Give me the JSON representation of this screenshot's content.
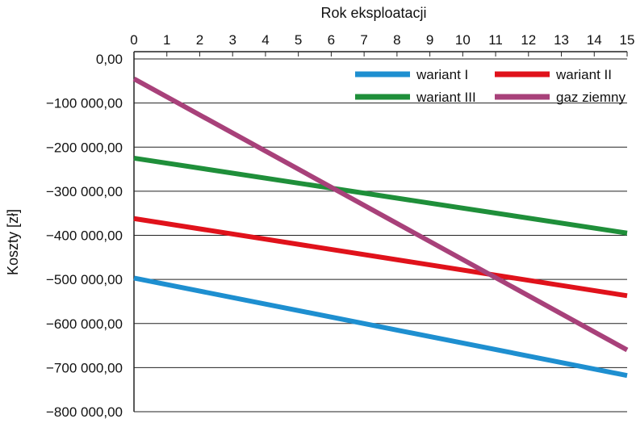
{
  "chart_data": {
    "type": "line",
    "xlabel": "Rok eksploatacji",
    "ylabel": "Koszty [zł]",
    "x_axis_position": "top",
    "xlim": [
      0,
      15
    ],
    "ylim": [
      -800000,
      0
    ],
    "grid": "horizontal",
    "legend_position": "top-right",
    "x_ticks": [
      "0",
      "1",
      "2",
      "3",
      "4",
      "5",
      "6",
      "7",
      "8",
      "9",
      "10",
      "11",
      "12",
      "13",
      "14",
      "15"
    ],
    "y_ticks": [
      {
        "value": 0,
        "label": "0,00"
      },
      {
        "value": -100000,
        "label": "−100 000,00"
      },
      {
        "value": -200000,
        "label": "−200 000,00"
      },
      {
        "value": -300000,
        "label": "−300 000,00"
      },
      {
        "value": -400000,
        "label": "−400 000,00"
      },
      {
        "value": -500000,
        "label": "−500 000,00"
      },
      {
        "value": -600000,
        "label": "−600 000,00"
      },
      {
        "value": -700000,
        "label": "−700 000,00"
      },
      {
        "value": -800000,
        "label": "−800 000,00"
      }
    ],
    "series": [
      {
        "name": "wariant I",
        "color": "#1e8fd0",
        "x": [
          0,
          15
        ],
        "values": [
          -497000,
          -718000
        ]
      },
      {
        "name": "wariant II",
        "color": "#e0121b",
        "x": [
          0,
          15
        ],
        "values": [
          -362000,
          -537000
        ]
      },
      {
        "name": "wariant III",
        "color": "#1f8f3a",
        "x": [
          0,
          15
        ],
        "values": [
          -225000,
          -395000
        ]
      },
      {
        "name": "gaz ziemny",
        "color": "#a8417a",
        "x": [
          0,
          15
        ],
        "values": [
          -45000,
          -660000
        ]
      }
    ]
  }
}
